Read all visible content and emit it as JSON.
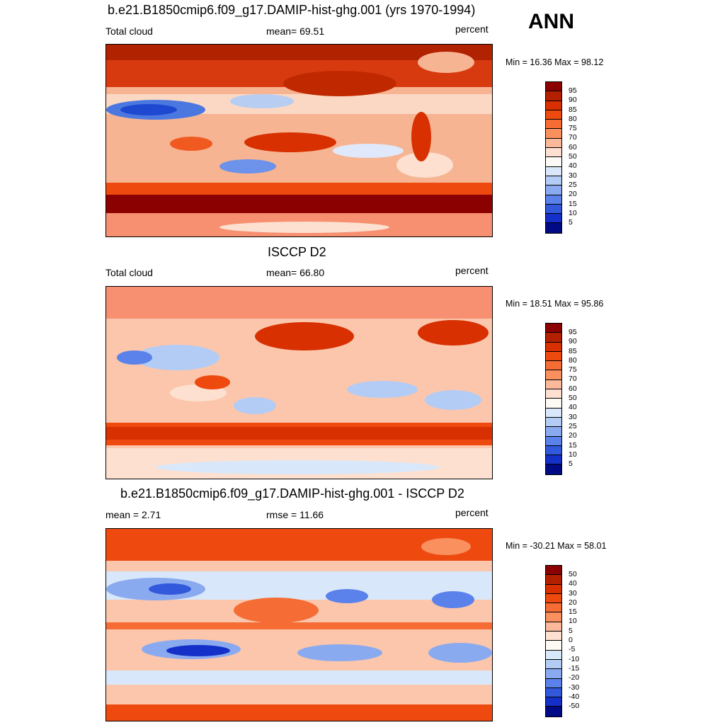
{
  "season": "ANN",
  "panels": [
    {
      "title": "b.e21.B1850cmip6.f09_g17.DAMIP-hist-ghg.001 (yrs 1970-1994)",
      "left_label": "Total cloud",
      "center_label": "mean=  69.51",
      "right_label": "percent",
      "minmax": "Min =  16.36 Max =  98.12",
      "levels": [
        "95",
        "90",
        "85",
        "80",
        "75",
        "70",
        "60",
        "50",
        "40",
        "30",
        "25",
        "20",
        "15",
        "10",
        "5"
      ]
    },
    {
      "title": "ISCCP D2",
      "left_label": "Total cloud",
      "center_label": "mean=  66.80",
      "right_label": "percent",
      "minmax": "Min =  18.51 Max =  95.86",
      "levels": [
        "95",
        "90",
        "85",
        "80",
        "75",
        "70",
        "60",
        "50",
        "40",
        "30",
        "25",
        "20",
        "15",
        "10",
        "5"
      ]
    },
    {
      "title": "b.e21.B1850cmip6.f09_g17.DAMIP-hist-ghg.001 - ISCCP D2",
      "left_label": "mean =   2.71",
      "center_label": "rmse =  11.66",
      "right_label": "percent",
      "minmax": "Min = -30.21 Max =  58.01",
      "levels": [
        "50",
        "40",
        "30",
        "20",
        "15",
        "10",
        "5",
        "0",
        "-5",
        "-10",
        "-15",
        "-20",
        "-30",
        "-40",
        "-50"
      ]
    }
  ],
  "colorbar_colors": [
    "#8b0000",
    "#b22000",
    "#d83000",
    "#ee4a10",
    "#f56d35",
    "#f9905e",
    "#fbb89a",
    "#fde0d0",
    "#fdfaf6",
    "#d8e8fa",
    "#b3ccf5",
    "#8aaaf0",
    "#5a82ea",
    "#3258dc",
    "#1530c8",
    "#000a85"
  ]
}
